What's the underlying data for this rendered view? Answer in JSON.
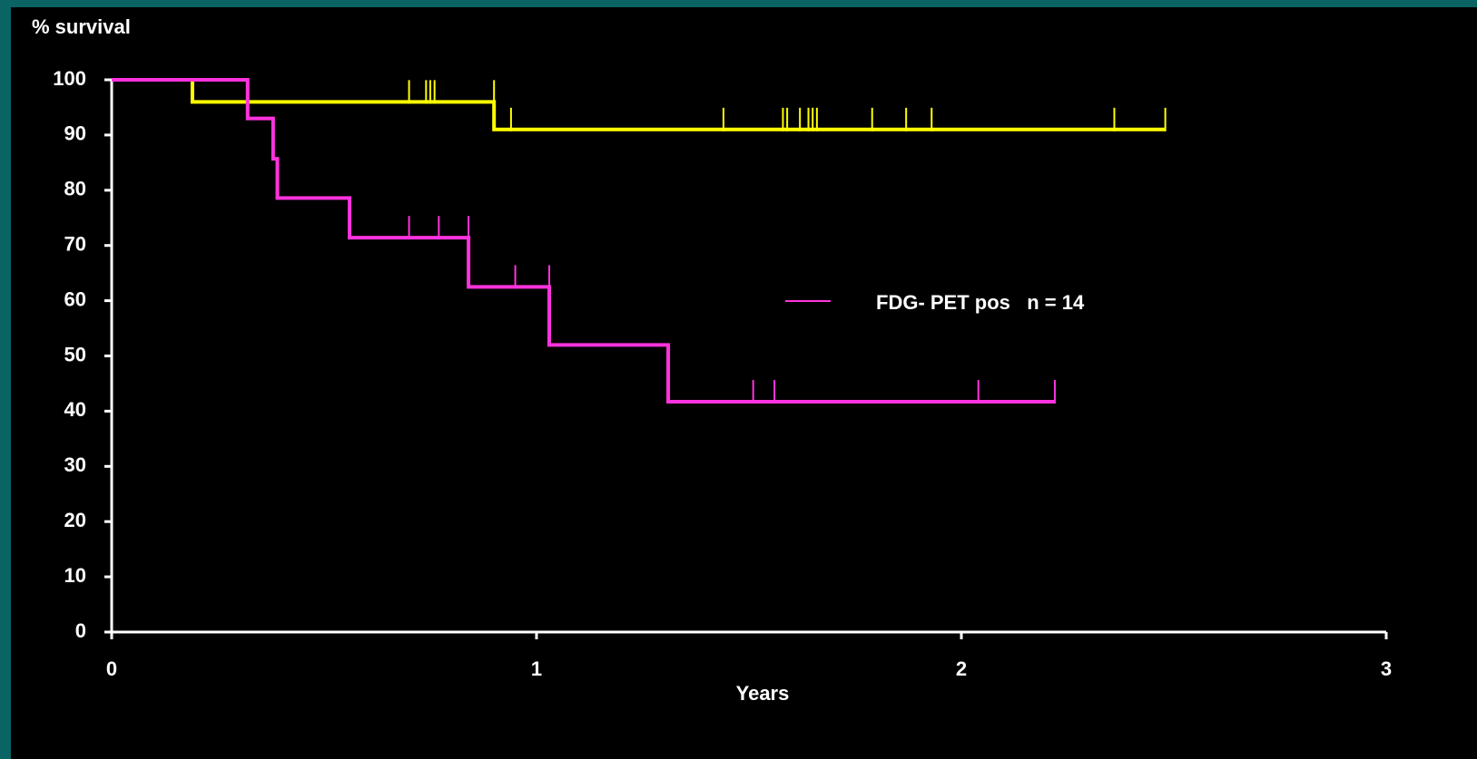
{
  "chart_data": {
    "type": "step",
    "y_label": "% survival",
    "x_label": "Years",
    "xlim": [
      0,
      3
    ],
    "xticks": [
      0,
      1,
      2,
      3
    ],
    "ylim": [
      0,
      100
    ],
    "yticks": [
      0,
      10,
      20,
      30,
      40,
      50,
      60,
      70,
      80,
      90,
      100
    ],
    "series": [
      {
        "color": "#ffff00",
        "x": [
          0,
          0.19,
          0.9,
          2.48
        ],
        "values": [
          100,
          96,
          91,
          91
        ],
        "censored_x": [
          0.7,
          0.74,
          0.75,
          0.76,
          0.9,
          0.94,
          1.44,
          1.58,
          1.59,
          1.62,
          1.64,
          1.65,
          1.66,
          1.79,
          1.87,
          1.93,
          2.36,
          2.48
        ],
        "censored_values": [
          96,
          96,
          96,
          96,
          96,
          91,
          91,
          91,
          91,
          91,
          91,
          91,
          91,
          91,
          91,
          91,
          91,
          91
        ]
      },
      {
        "name": "FDG- PET pos   n = 14",
        "color": "#ff33dd",
        "x": [
          0,
          0.32,
          0.38,
          0.39,
          0.56,
          0.84,
          1.03,
          1.31,
          2.22
        ],
        "values": [
          100,
          93,
          85.7,
          78.6,
          71.4,
          62.5,
          52,
          41.7,
          41.7
        ],
        "censored_x": [
          0.7,
          0.77,
          0.84,
          0.95,
          1.03,
          1.51,
          1.56,
          2.04,
          2.22
        ],
        "censored_values": [
          71.4,
          71.4,
          71.4,
          62.5,
          62.5,
          41.7,
          41.7,
          41.7,
          41.7
        ]
      }
    ]
  }
}
